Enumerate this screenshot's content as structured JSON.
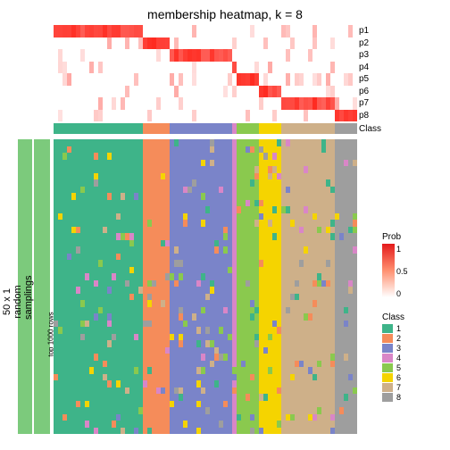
{
  "title": "membership heatmap, k = 8",
  "background_color": "#ffffff",
  "prob_colorscale": {
    "low": "#ffffff",
    "mid": "#fdbba5",
    "high": "#e41a1c"
  },
  "prob_rows": [
    "p1",
    "p2",
    "p3",
    "p4",
    "p5",
    "p6",
    "p7",
    "p8"
  ],
  "class_colors": {
    "1": "#3eb489",
    "2": "#f58c5a",
    "3": "#7a84c9",
    "4": "#d986c7",
    "5": "#8ac94e",
    "6": "#f5d400",
    "7": "#ceb089",
    "8": "#9e9e9e"
  },
  "class_strip_label": "Class",
  "class_proportions": [
    0.3,
    0.09,
    0.21,
    0.02,
    0.07,
    0.08,
    0.17,
    0.06
  ],
  "side_labels": {
    "outer": "50 x 1 random samplings",
    "inner": "top 1000 rows",
    "color": "#7cca7c"
  },
  "legend_prob": {
    "title": "Prob",
    "ticks": [
      "1",
      "0.5",
      "0"
    ]
  },
  "legend_class_title": "Class",
  "n_cols": 68,
  "n_rows": 44,
  "prob_matrix_seed": 11,
  "main_seed": 7
}
